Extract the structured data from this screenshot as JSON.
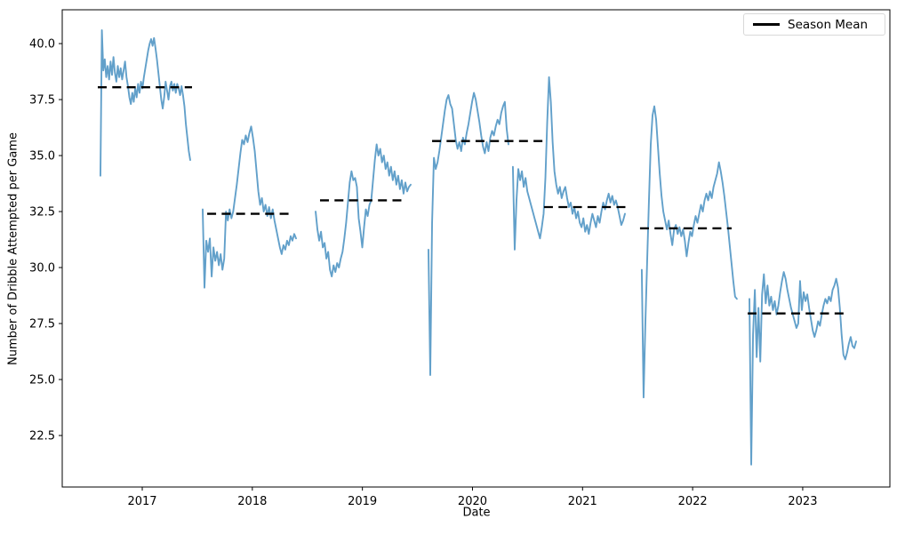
{
  "chart_data": {
    "type": "line",
    "title": "",
    "xlabel": "Date",
    "ylabel": "Number of Dribble Attempted per Game",
    "legend_label": "Season Mean",
    "legend_position": "upper right",
    "grid": false,
    "series_color": "#62a0ca",
    "mean_color": "#000000",
    "x_ticks": [
      2017,
      2018,
      2019,
      2020,
      2021,
      2022,
      2023
    ],
    "y_ticks": [
      22.5,
      25.0,
      27.5,
      30.0,
      32.5,
      35.0,
      37.5,
      40.0
    ],
    "x_domain": [
      2016.273,
      2023.792
    ],
    "y_domain": [
      20.2,
      41.51
    ],
    "series": [
      {
        "x_start": 2016.62,
        "x_end": 2017.436,
        "values": [
          34.1,
          40.6,
          38.8,
          39.3,
          38.5,
          39.0,
          38.4,
          39.2,
          38.6,
          39.4,
          38.7,
          38.3,
          39.0,
          38.5,
          38.9,
          38.4,
          38.8,
          39.2,
          38.5,
          38.1,
          37.6,
          37.3,
          37.8,
          37.4,
          38.0,
          37.6,
          38.2,
          37.8,
          38.3,
          38.0,
          38.5,
          38.9,
          39.3,
          39.7,
          40.0,
          40.2,
          39.9,
          40.25,
          39.8,
          39.3,
          38.7,
          38.1,
          37.5,
          37.1,
          37.6,
          38.3,
          37.9,
          37.5,
          38.1,
          38.3,
          37.9,
          38.2,
          37.8,
          38.2,
          38.0,
          37.7,
          38.1,
          37.7,
          37.2,
          36.4,
          35.8,
          35.2,
          34.8
        ]
      },
      {
        "x_start": 2017.549,
        "x_end": 2018.397,
        "values": [
          32.6,
          29.1,
          31.2,
          30.7,
          31.3,
          29.6,
          30.9,
          30.3,
          30.7,
          30.1,
          30.6,
          29.9,
          30.4,
          32.5,
          32.1,
          32.6,
          32.2,
          32.5,
          33.1,
          33.7,
          34.4,
          35.1,
          35.7,
          35.5,
          35.9,
          35.6,
          36.0,
          36.3,
          35.8,
          35.2,
          34.3,
          33.4,
          32.8,
          33.1,
          32.5,
          32.8,
          32.3,
          32.7,
          32.2,
          32.6,
          32.1,
          31.7,
          31.3,
          30.9,
          30.6,
          31.0,
          30.8,
          31.2,
          31.0,
          31.4,
          31.2,
          31.5,
          31.3
        ]
      },
      {
        "x_start": 2018.575,
        "x_end": 2019.439,
        "values": [
          32.5,
          31.7,
          31.2,
          31.6,
          30.9,
          31.1,
          30.4,
          30.7,
          29.9,
          29.6,
          30.1,
          29.8,
          30.2,
          30.0,
          30.4,
          30.7,
          31.3,
          32.0,
          32.9,
          33.8,
          34.3,
          33.9,
          34.0,
          33.6,
          32.2,
          31.6,
          30.9,
          31.8,
          32.6,
          32.3,
          32.8,
          33.0,
          33.9,
          34.8,
          35.5,
          35.0,
          35.3,
          34.7,
          35.0,
          34.4,
          34.7,
          34.1,
          34.5,
          33.9,
          34.3,
          33.7,
          34.1,
          33.5,
          33.9,
          33.3,
          33.8,
          33.4,
          33.6,
          33.7
        ]
      },
      {
        "x_start": 2019.6,
        "x_end": 2020.327,
        "values": [
          30.8,
          25.2,
          32.0,
          34.9,
          34.4,
          34.7,
          35.2,
          35.8,
          36.4,
          37.0,
          37.5,
          37.7,
          37.3,
          37.1,
          36.4,
          35.7,
          35.3,
          35.6,
          35.2,
          35.8,
          35.5,
          36.0,
          36.4,
          36.9,
          37.4,
          37.8,
          37.5,
          37.0,
          36.5,
          35.9,
          35.4,
          35.1,
          35.6,
          35.2,
          35.8,
          36.1,
          35.9,
          36.3,
          36.6,
          36.4,
          36.9,
          37.2,
          37.4,
          36.2,
          35.5
        ]
      },
      {
        "x_start": 2020.367,
        "x_end": 2021.385,
        "values": [
          34.5,
          30.8,
          33.0,
          34.4,
          33.9,
          34.3,
          33.6,
          34.0,
          33.4,
          33.1,
          32.8,
          32.5,
          32.2,
          31.9,
          31.6,
          31.3,
          31.8,
          32.4,
          34.0,
          36.5,
          38.5,
          37.4,
          35.6,
          34.3,
          33.7,
          33.3,
          33.6,
          33.1,
          33.4,
          33.6,
          33.1,
          32.7,
          32.9,
          32.4,
          32.7,
          32.2,
          32.5,
          32.0,
          31.8,
          32.2,
          31.6,
          31.9,
          31.5,
          32.0,
          32.4,
          32.1,
          31.8,
          32.3,
          32.0,
          32.5,
          32.9,
          32.6,
          33.0,
          33.3,
          32.9,
          33.2,
          32.8,
          33.0,
          32.7,
          32.3,
          31.9,
          32.1,
          32.4
        ]
      },
      {
        "x_start": 2021.538,
        "x_end": 2022.402,
        "values": [
          29.9,
          24.2,
          27.5,
          30.3,
          33.0,
          35.5,
          36.8,
          37.2,
          36.6,
          35.4,
          34.2,
          33.2,
          32.5,
          32.1,
          31.7,
          32.1,
          31.5,
          31.0,
          31.7,
          31.9,
          31.5,
          31.8,
          31.4,
          31.7,
          31.2,
          30.5,
          31.1,
          31.6,
          31.4,
          31.9,
          32.3,
          32.0,
          32.4,
          32.8,
          32.5,
          33.0,
          33.3,
          33.0,
          33.4,
          33.1,
          33.6,
          33.9,
          34.2,
          34.7,
          34.3,
          33.8,
          33.2,
          32.5,
          31.8,
          31.0,
          30.2,
          29.4,
          28.7,
          28.6
        ]
      },
      {
        "x_start": 2022.516,
        "x_end": 2023.485,
        "values": [
          28.6,
          21.2,
          27.0,
          29.0,
          26.0,
          28.2,
          25.8,
          28.8,
          29.7,
          28.4,
          29.2,
          28.3,
          28.7,
          28.1,
          28.5,
          27.9,
          28.3,
          28.9,
          29.4,
          29.8,
          29.5,
          29.0,
          28.6,
          28.2,
          27.9,
          27.6,
          27.3,
          27.5,
          29.4,
          28.1,
          28.9,
          28.5,
          28.8,
          28.2,
          27.7,
          27.2,
          26.9,
          27.2,
          27.6,
          27.4,
          27.9,
          28.3,
          28.6,
          28.4,
          28.7,
          28.5,
          29.0,
          29.2,
          29.5,
          29.1,
          28.2,
          27.0,
          26.1,
          25.9,
          26.2,
          26.6,
          26.9,
          26.5,
          26.4,
          26.7
        ]
      }
    ],
    "season_means": [
      {
        "x_start": 2016.596,
        "x_end": 2017.452,
        "value": 38.05
      },
      {
        "x_start": 2017.59,
        "x_end": 2018.373,
        "value": 32.4
      },
      {
        "x_start": 2018.615,
        "x_end": 2019.366,
        "value": 33.0
      },
      {
        "x_start": 2019.633,
        "x_end": 2020.65,
        "value": 35.65
      },
      {
        "x_start": 2020.65,
        "x_end": 2021.401,
        "value": 32.7
      },
      {
        "x_start": 2021.522,
        "x_end": 2022.354,
        "value": 31.75
      },
      {
        "x_start": 2022.5,
        "x_end": 2023.42,
        "value": 27.95
      }
    ]
  }
}
